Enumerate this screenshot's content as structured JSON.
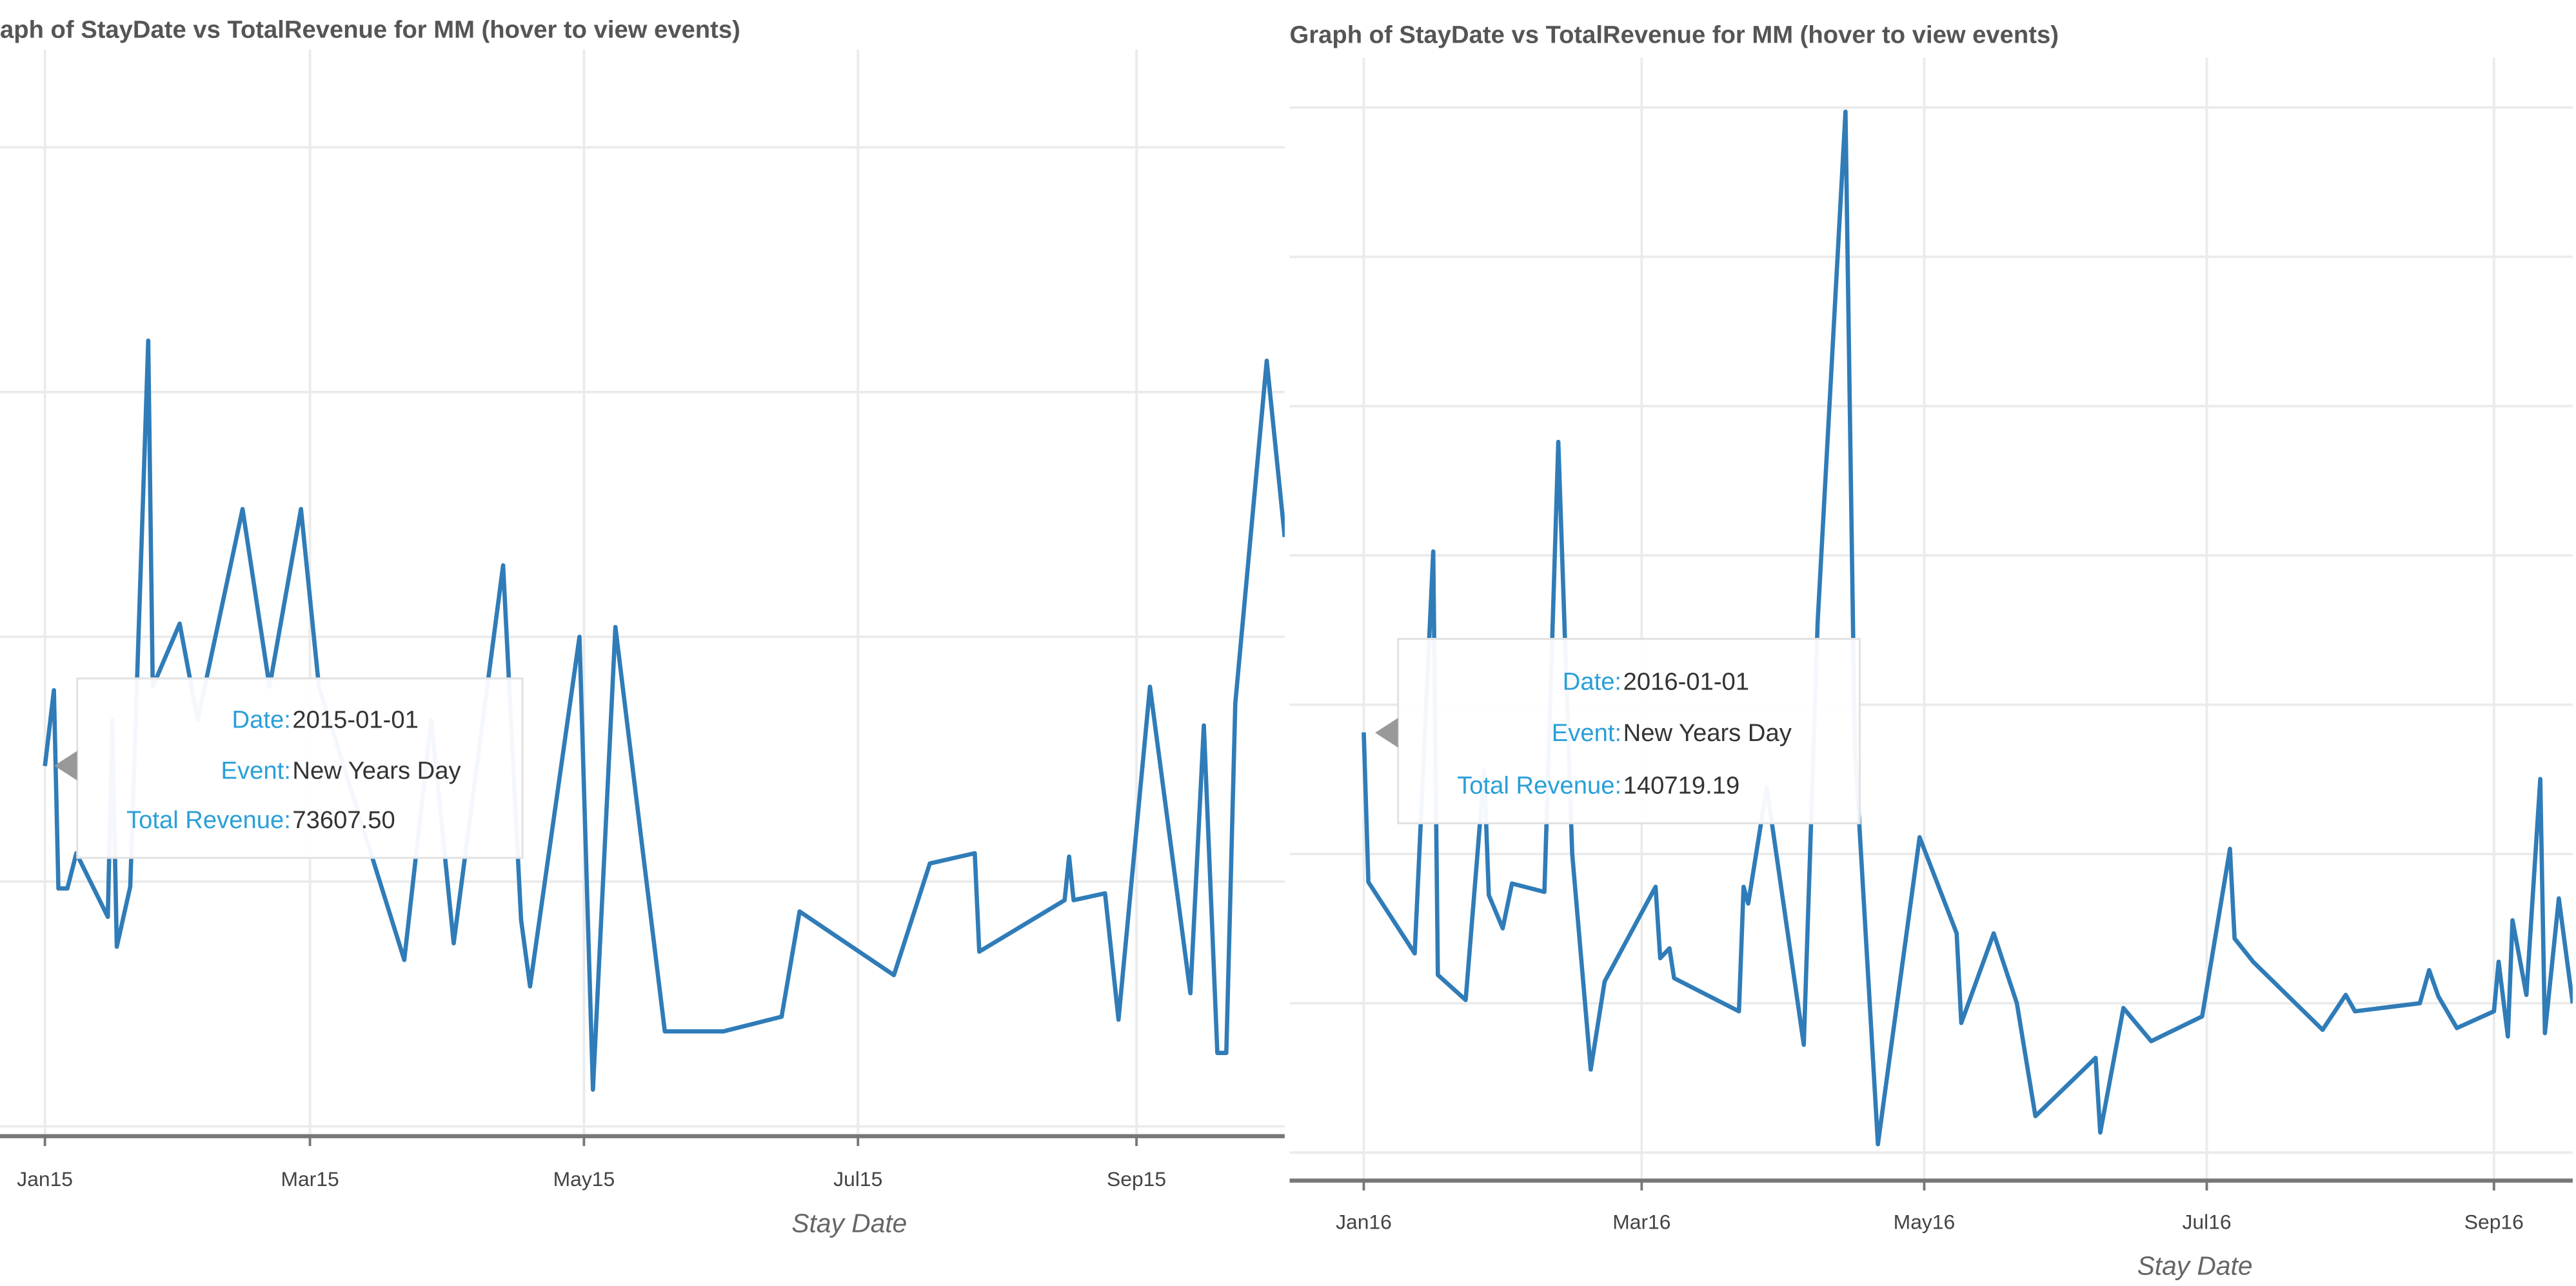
{
  "chart_data": [
    {
      "type": "line",
      "title": "aph of StayDate vs TotalRevenue for MM (hover to view events)",
      "x_label": "Stay Date",
      "color": "#2f7cb8",
      "grid": true,
      "x": [
        "2015-01-01",
        "2015-01-03",
        "2015-01-04",
        "2015-01-06",
        "2015-01-08",
        "2015-01-15",
        "2015-01-16",
        "2015-01-17",
        "2015-01-20",
        "2015-01-24",
        "2015-01-25",
        "2015-01-31",
        "2015-02-04",
        "2015-02-14",
        "2015-02-20",
        "2015-02-27",
        "2015-03-03",
        "2015-03-22",
        "2015-03-28",
        "2015-04-02",
        "2015-04-13",
        "2015-04-17",
        "2015-04-19",
        "2015-04-30",
        "2015-05-03",
        "2015-05-08",
        "2015-05-19",
        "2015-06-01",
        "2015-06-14",
        "2015-06-18",
        "2015-07-09",
        "2015-07-17",
        "2015-07-27",
        "2015-07-28",
        "2015-08-16",
        "2015-08-17",
        "2015-08-18",
        "2015-08-25",
        "2015-08-28",
        "2015-09-04",
        "2015-09-13",
        "2015-09-16",
        "2015-09-19",
        "2015-09-21",
        "2015-09-23",
        "2015-09-30",
        "2015-10-04"
      ],
      "values": [
        73607.5,
        89100,
        48600,
        48600,
        55800,
        42800,
        83000,
        36700,
        49000,
        160500,
        89800,
        102700,
        83000,
        126100,
        89800,
        126100,
        89800,
        34000,
        83000,
        37400,
        114600,
        42200,
        28600,
        100000,
        7500,
        102000,
        19400,
        19400,
        22400,
        43900,
        30900,
        53700,
        55800,
        35700,
        46200,
        55100,
        46200,
        47600,
        21800,
        89800,
        27200,
        81900,
        15000,
        15000,
        86400,
        156400,
        120400
      ],
      "xlim": [
        "2014-12-22",
        "2015-10-04"
      ],
      "ylim": [
        -2000,
        220000
      ],
      "xticks": [
        {
          "value": "2015-01-01",
          "label": "Jan15"
        },
        {
          "value": "2015-03-01",
          "label": "Mar15"
        },
        {
          "value": "2015-05-01",
          "label": "May15"
        },
        {
          "value": "2015-07-01",
          "label": "Jul15"
        },
        {
          "value": "2015-09-01",
          "label": "Sep15"
        }
      ],
      "yticks": [
        0,
        50000,
        100000,
        150000,
        200000
      ],
      "tooltip": {
        "labels": [
          "Date:",
          "Event:",
          "Total Revenue:"
        ],
        "date": "2015-01-01",
        "event": "New Years Day",
        "value": 73607.5,
        "value_label": "73607.50"
      }
    },
    {
      "type": "line",
      "title": "Graph of StayDate vs TotalRevenue for MM (hover to view events)",
      "x_label": "Stay Date",
      "color": "#2f7cb8",
      "grid": true,
      "x": [
        "2016-01-01",
        "2016-01-02",
        "2016-01-12",
        "2016-01-16",
        "2016-01-17",
        "2016-01-23",
        "2016-01-27",
        "2016-01-28",
        "2016-01-31",
        "2016-02-02",
        "2016-02-09",
        "2016-02-12",
        "2016-02-15",
        "2016-02-19",
        "2016-02-22",
        "2016-03-04",
        "2016-03-05",
        "2016-03-07",
        "2016-03-08",
        "2016-03-22",
        "2016-03-23",
        "2016-03-24",
        "2016-03-28",
        "2016-04-05",
        "2016-04-08",
        "2016-04-14",
        "2016-04-16",
        "2016-04-21",
        "2016-04-30",
        "2016-05-08",
        "2016-05-09",
        "2016-05-16",
        "2016-05-21",
        "2016-05-25",
        "2016-06-07",
        "2016-06-08",
        "2016-06-13",
        "2016-06-19",
        "2016-06-30",
        "2016-07-06",
        "2016-07-07",
        "2016-07-11",
        "2016-07-26",
        "2016-07-31",
        "2016-08-02",
        "2016-08-16",
        "2016-08-18",
        "2016-08-20",
        "2016-08-24",
        "2016-09-01",
        "2016-09-02",
        "2016-09-04",
        "2016-09-05",
        "2016-09-08",
        "2016-09-11",
        "2016-09-12",
        "2016-09-15",
        "2016-09-18"
      ],
      "values": [
        140719.19,
        90600,
        66700,
        201300,
        59500,
        51100,
        127900,
        86200,
        75100,
        90100,
        87300,
        238000,
        100100,
        27800,
        57300,
        89000,
        65100,
        68400,
        58400,
        47300,
        89000,
        83400,
        122300,
        36100,
        177900,
        348600,
        136200,
        2800,
        105600,
        73400,
        43400,
        73400,
        50000,
        12200,
        31700,
        6700,
        48400,
        37300,
        45600,
        101700,
        71700,
        63900,
        41100,
        52800,
        47300,
        50000,
        61100,
        52300,
        41700,
        47300,
        63900,
        38900,
        77800,
        52800,
        125100,
        40000,
        85100,
        50000
      ],
      "xlim": [
        "2015-12-16",
        "2016-09-18"
      ],
      "ylim": [
        -9400,
        366700
      ],
      "xticks": [
        {
          "value": "2016-01-01",
          "label": "Jan16"
        },
        {
          "value": "2016-03-01",
          "label": "Mar16"
        },
        {
          "value": "2016-05-01",
          "label": "May16"
        },
        {
          "value": "2016-07-01",
          "label": "Jul16"
        },
        {
          "value": "2016-09-01",
          "label": "Sep16"
        }
      ],
      "yticks": [
        0,
        50000,
        100000,
        150000,
        200000,
        250000,
        300000,
        350000
      ],
      "tooltip": {
        "labels": [
          "Date:",
          "Event:",
          "Total Revenue:"
        ],
        "date": "2016-01-01",
        "event": "New Years Day",
        "value": 140719.19
      }
    }
  ]
}
